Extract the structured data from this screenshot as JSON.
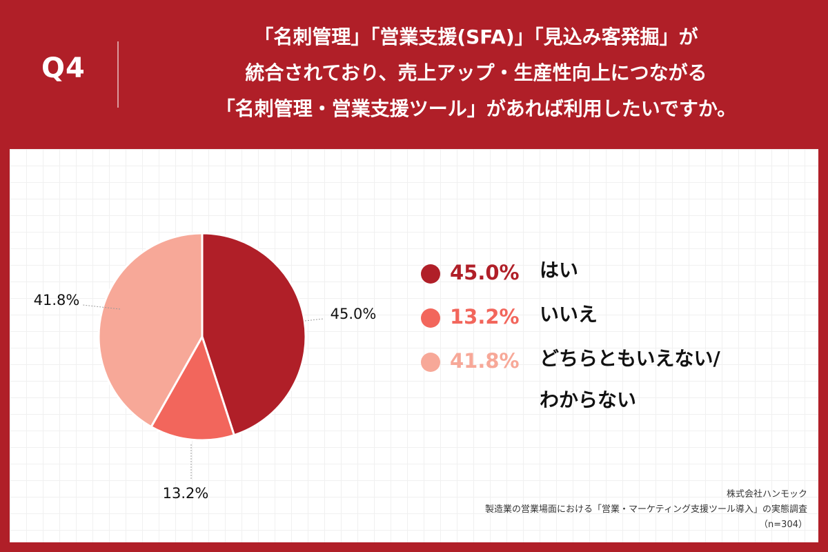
{
  "header": {
    "q_label": "Q4",
    "question_lines": [
      "「名刺管理」「営業支援(SFA)」「見込み客発掘」が",
      "統合されており、売上アップ・生産性向上につながる",
      "「名刺管理・営業支援ツール」があれば利用したいですか。"
    ]
  },
  "colors": {
    "brand_red": "#b01f28",
    "yes": "#b01f28",
    "no": "#f2665c",
    "unsure": "#f7a898"
  },
  "chart_data": {
    "type": "pie",
    "slices": [
      {
        "label": "はい",
        "value": 45.0,
        "display": "45.0%",
        "color": "#b01f28"
      },
      {
        "label": "いいえ",
        "value": 13.2,
        "display": "13.2%",
        "color": "#f2665c"
      },
      {
        "label": "どちらともいえない/わからない",
        "value": 41.8,
        "display": "41.8%",
        "color": "#f7a898"
      }
    ],
    "legend_placement": "right"
  },
  "legend": {
    "items": [
      {
        "pct": "45.0%",
        "label_lines": [
          "はい"
        ]
      },
      {
        "pct": "13.2%",
        "label_lines": [
          "いいえ"
        ]
      },
      {
        "pct": "41.8%",
        "label_lines": [
          "どちらともいえない/",
          "わからない"
        ]
      }
    ]
  },
  "source": {
    "company": "株式会社ハンモック",
    "survey": "製造業の営業場面における「営業・マーケティング支援ツール導入」の実態調査",
    "sample": "（n=304）"
  }
}
